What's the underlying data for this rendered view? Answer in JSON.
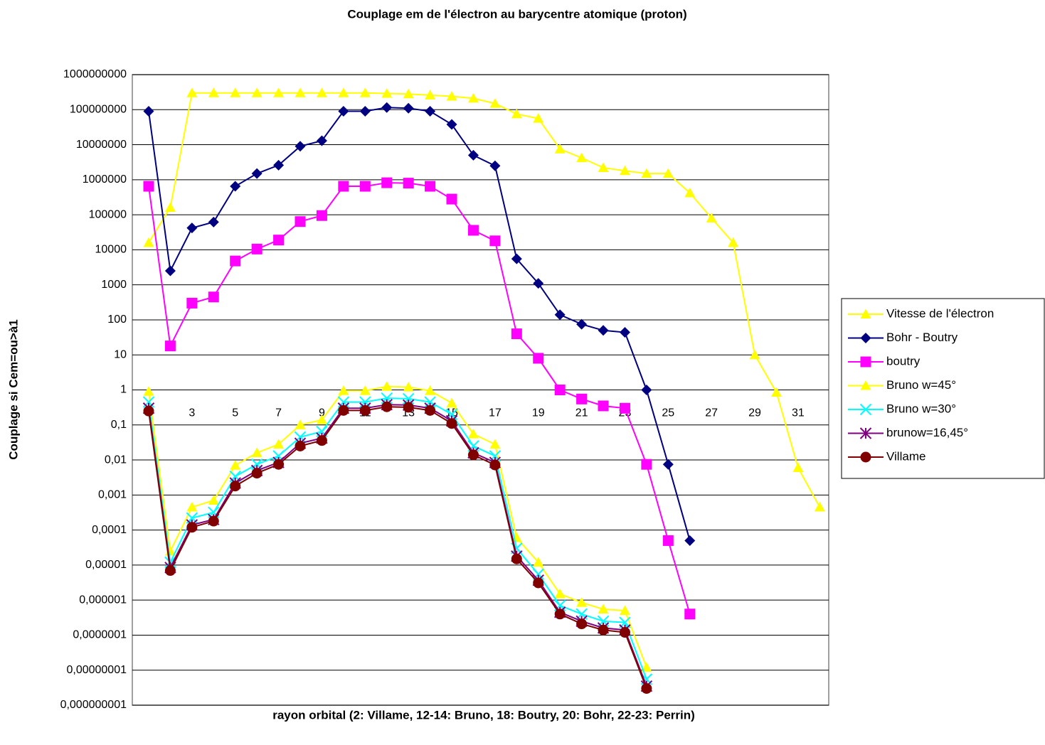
{
  "chart_data": {
    "type": "line",
    "title": "Couplage em de l'électron au barycentre atomique (proton)",
    "x_label": "rayon orbital (2: Villame, 12-14: Bruno, 18: Boutry, 20: Bohr, 22-23: Perrin)",
    "y_label": "Couplage si Cem=ou>à1",
    "log_y": true,
    "grid": true,
    "legend": "right",
    "categories": [
      null,
      null,
      3,
      null,
      5,
      null,
      7,
      null,
      9,
      null,
      11,
      null,
      13,
      null,
      15,
      null,
      17,
      null,
      19,
      null,
      21,
      null,
      23,
      null,
      25,
      null,
      27,
      null,
      29,
      null,
      31,
      null
    ],
    "ylim": [
      1e-09,
      1000000000
    ],
    "yticks": [
      {
        "value": 1e-09,
        "label": "0,000000001"
      },
      {
        "value": 1e-08,
        "label": "0,00000001"
      },
      {
        "value": 1e-07,
        "label": "0,0000001"
      },
      {
        "value": 1e-06,
        "label": "0,000001"
      },
      {
        "value": 1e-05,
        "label": "0,00001"
      },
      {
        "value": 0.0001,
        "label": "0,0001"
      },
      {
        "value": 0.001,
        "label": "0,001"
      },
      {
        "value": 0.01,
        "label": "0,01"
      },
      {
        "value": 0.1,
        "label": "0,1"
      },
      1,
      10,
      100,
      1000,
      10000,
      100000,
      1000000,
      10000000,
      100000000,
      1000000000
    ],
    "series": [
      {
        "name": "Vitesse de l'électron",
        "color": "#ffff00",
        "marker": "triangle",
        "values": [
          16000,
          160000,
          300000000,
          300000000,
          300000000,
          300000000,
          300000000,
          300000000,
          300000000,
          300000000,
          300000000,
          290000000,
          280000000,
          260000000,
          240000000,
          210000000,
          150000000,
          75000000,
          56000000,
          7500000,
          4200000,
          2200000,
          1800000,
          1500000,
          1500000,
          420000,
          80000,
          16000,
          10,
          0.85,
          0.006,
          0.00045
        ]
      },
      {
        "name": "Bohr - Boutry",
        "color": "#000080",
        "marker": "diamond",
        "values": [
          90000000,
          2500,
          42000,
          62000,
          650000,
          1500000,
          2600000,
          9000000,
          13000000,
          90000000,
          90000000,
          115000000,
          110000000,
          90000000,
          38000000,
          5000000,
          2500000,
          5500,
          1100,
          140,
          75,
          50,
          44,
          1,
          0.0075,
          5e-05,
          null,
          null,
          null,
          null,
          null,
          null
        ]
      },
      {
        "name": "boutry",
        "color": "#ff00ff",
        "marker": "square",
        "values": [
          650000,
          18,
          300,
          450,
          4800,
          10500,
          19000,
          64000,
          95000,
          650000,
          650000,
          820000,
          800000,
          650000,
          280000,
          36000,
          18000,
          40,
          8,
          1,
          0.55,
          0.35,
          0.3,
          0.0075,
          5e-05,
          4e-07,
          null,
          null,
          null,
          null,
          null,
          null
        ]
      },
      {
        "name": "Bruno w=45°",
        "color": "#ffff00",
        "marker": "triangle",
        "values": [
          0.9,
          2.5e-05,
          0.00045,
          0.0007,
          0.007,
          0.016,
          0.028,
          0.1,
          0.14,
          0.95,
          0.95,
          1.25,
          1.2,
          0.95,
          0.42,
          0.055,
          0.028,
          6e-05,
          1.2e-05,
          1.5e-06,
          8.5e-07,
          5.5e-07,
          5e-07,
          1.2e-08,
          null,
          null,
          null,
          null,
          null,
          null,
          null,
          null
        ]
      },
      {
        "name": "Bruno w=30°",
        "color": "#00ffff",
        "marker": "x",
        "values": [
          0.45,
          1.2e-05,
          0.00022,
          0.00032,
          0.0034,
          0.0075,
          0.013,
          0.045,
          0.065,
          0.45,
          0.45,
          0.58,
          0.56,
          0.45,
          0.2,
          0.025,
          0.013,
          3e-05,
          5.5e-06,
          7e-07,
          4e-07,
          2.5e-07,
          2.3e-07,
          5.5e-09,
          null,
          null,
          null,
          null,
          null,
          null,
          null,
          null
        ]
      },
      {
        "name": "brunow=16,45°",
        "color": "#800080",
        "marker": "star",
        "values": [
          0.3,
          8.5e-06,
          0.00014,
          0.0002,
          0.0022,
          0.005,
          0.0085,
          0.03,
          0.042,
          0.3,
          0.3,
          0.38,
          0.37,
          0.3,
          0.13,
          0.016,
          0.0085,
          1.8e-05,
          3.7e-06,
          4.5e-07,
          2.5e-07,
          1.6e-07,
          1.4e-07,
          3.5e-09,
          null,
          null,
          null,
          null,
          null,
          null,
          null,
          null
        ]
      },
      {
        "name": "Villame",
        "color": "#800000",
        "marker": "circle",
        "values": [
          0.25,
          7e-06,
          0.00012,
          0.00018,
          0.0018,
          0.0042,
          0.0075,
          0.025,
          0.036,
          0.26,
          0.26,
          0.33,
          0.32,
          0.26,
          0.11,
          0.014,
          0.0072,
          1.5e-05,
          3.1e-06,
          4e-07,
          2.1e-07,
          1.4e-07,
          1.2e-07,
          3e-09,
          null,
          null,
          null,
          null,
          null,
          null,
          null,
          null
        ]
      }
    ]
  }
}
